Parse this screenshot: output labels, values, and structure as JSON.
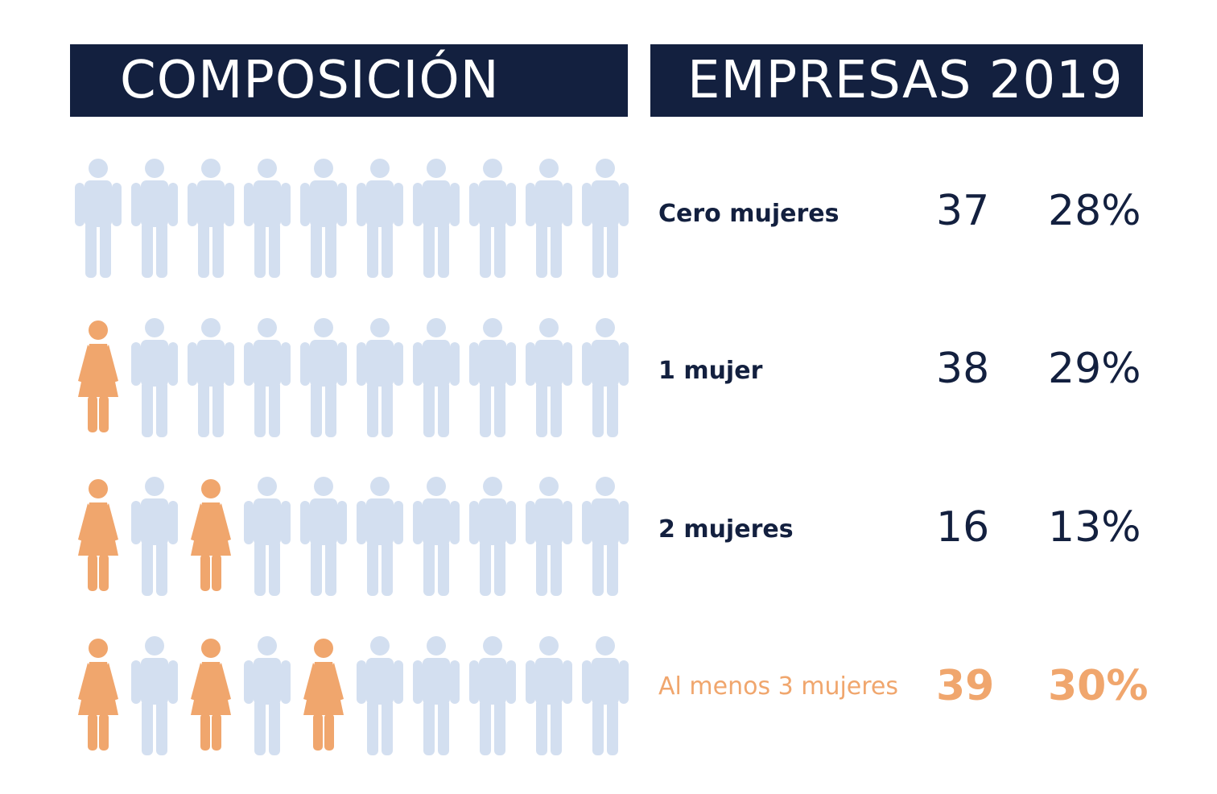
{
  "header": {
    "left_title": "COMPOSICIÓN",
    "right_title": "EMPRESAS 2019"
  },
  "colors": {
    "navy": "#13203f",
    "man": "#d3dff0",
    "woman": "#f0a66d"
  },
  "icons": {
    "man": "man-icon",
    "woman": "woman-icon"
  },
  "chart_data": {
    "type": "table",
    "columns": [
      "",
      "",
      ""
    ],
    "rows": [
      {
        "label": "Cero mujeres",
        "count": "37",
        "percent": "28%",
        "women_icons": 0,
        "highlight": false
      },
      {
        "label": "1 mujer",
        "count": "38",
        "percent": "29%",
        "women_icons": 1,
        "highlight": false
      },
      {
        "label": "2 mujeres",
        "count": "16",
        "percent": "13%",
        "women_icons": 2,
        "highlight": false
      },
      {
        "label": "Al menos 3 mujeres",
        "count": "39",
        "percent": "30%",
        "women_icons": 3,
        "highlight": true
      }
    ],
    "icons_per_row": 10,
    "values": [
      37,
      38,
      16,
      39
    ],
    "percentages": [
      28,
      29,
      13,
      30
    ]
  }
}
